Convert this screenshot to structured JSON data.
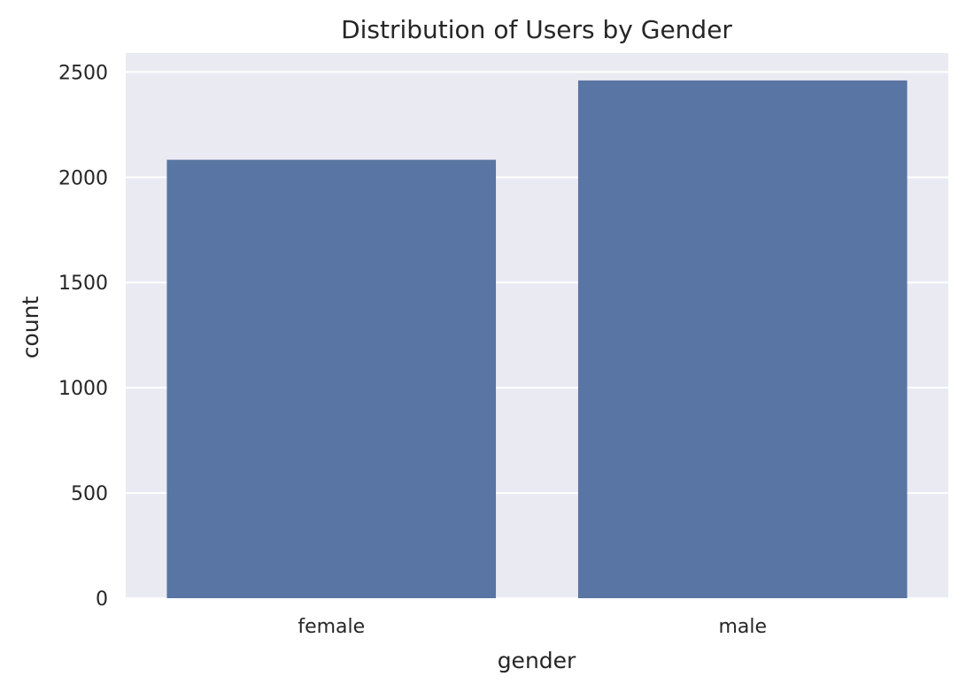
{
  "chart_data": {
    "type": "bar",
    "title": "Distribution of Users by Gender",
    "xlabel": "gender",
    "ylabel": "count",
    "categories": [
      "female",
      "male"
    ],
    "values": [
      2083,
      2460
    ],
    "ylim": [
      0,
      2590
    ],
    "yticks": [
      0,
      500,
      1000,
      1500,
      2000,
      2500
    ],
    "ytick_labels": [
      "0",
      "500",
      "1000",
      "1500",
      "2000",
      "2500"
    ],
    "grid": true,
    "colors": {
      "bar": "#5975a4",
      "background": "#eaeaf2",
      "grid": "#ffffff",
      "text": "#262626"
    }
  }
}
